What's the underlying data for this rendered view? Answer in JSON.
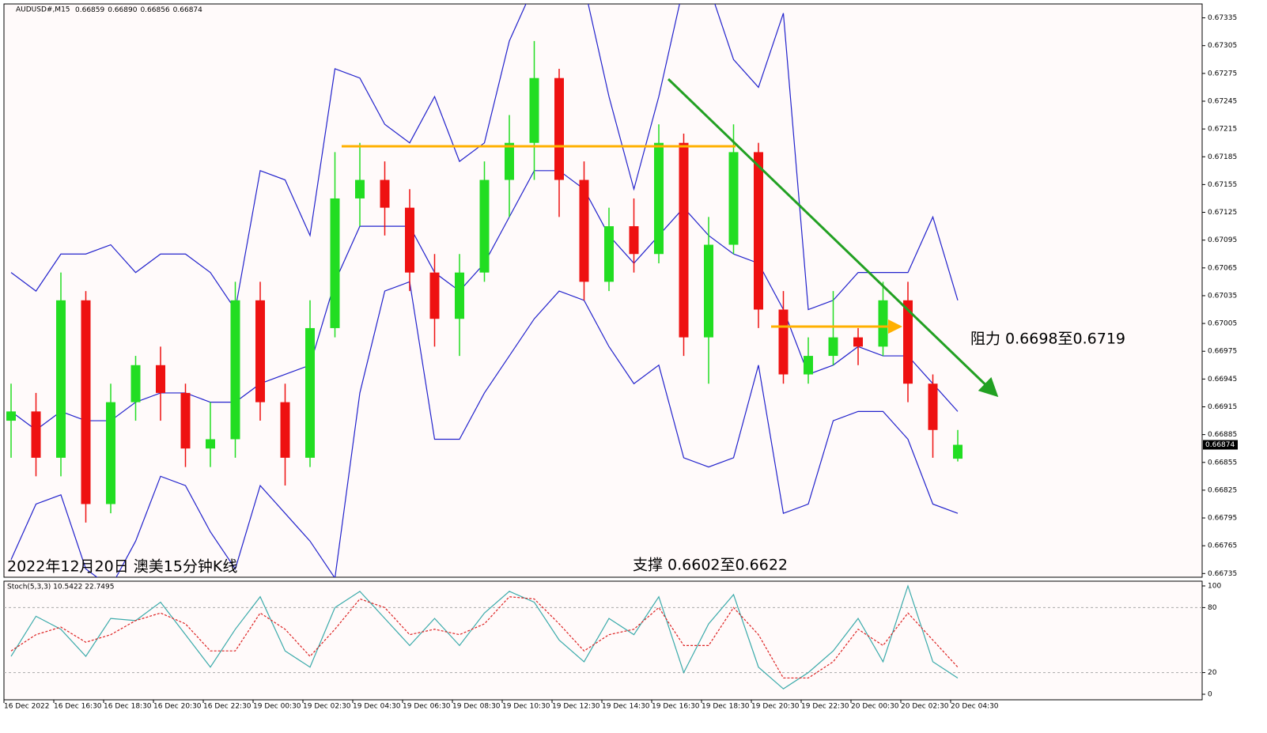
{
  "chart_data": [
    {
      "type": "candlestick",
      "symbol": "AUDUSD#,M15",
      "last_labels": [
        "0.66859",
        "0.66890",
        "0.66856",
        "0.66874"
      ],
      "caption": "2022年12月20日 澳美15分钟K线",
      "resistance": "阻力 0.6698至0.6719",
      "support": "支撑 0.6602至0.6622",
      "categories": [
        "16 Dec 2022",
        null,
        "16 Dec 16:30",
        null,
        "16 Dec 18:30",
        null,
        "16 Dec 20:30",
        null,
        "16 Dec 22:30",
        null,
        "19 Dec 00:30",
        null,
        "19 Dec 02:30",
        null,
        "19 Dec 04:30",
        null,
        "19 Dec 06:30",
        null,
        "19 Dec 08:30",
        null,
        "19 Dec 10:30",
        null,
        "19 Dec 12:30",
        null,
        "19 Dec 14:30",
        null,
        "19 Dec 16:30",
        null,
        "19 Dec 18:30",
        null,
        "19 Dec 20:30",
        null,
        "19 Dec 22:30",
        null,
        "20 Dec 00:30",
        null,
        "20 Dec 02:30",
        null,
        "20 Dec 04:30"
      ],
      "open": [
        0.669,
        0.6691,
        0.6686,
        0.6703,
        0.6681,
        0.6692,
        0.6696,
        0.6693,
        0.6687,
        0.6688,
        0.6703,
        0.6692,
        0.6686,
        0.67,
        0.6714,
        0.6716,
        0.6713,
        0.6706,
        0.6701,
        0.6706,
        0.6716,
        0.672,
        0.6727,
        0.6716,
        0.6705,
        0.6711,
        0.6708,
        0.672,
        0.6699,
        0.6709,
        0.6719,
        0.6702,
        0.6695,
        0.6697,
        0.6699,
        0.6698,
        0.6703,
        0.6694,
        0.66859
      ],
      "high": [
        0.6694,
        0.6693,
        0.6706,
        0.6704,
        0.6694,
        0.6697,
        0.6698,
        0.6694,
        0.6692,
        0.6705,
        0.6705,
        0.6694,
        0.6703,
        0.6719,
        0.672,
        0.6718,
        0.6715,
        0.6708,
        0.6708,
        0.6718,
        0.6723,
        0.6731,
        0.6728,
        0.6718,
        0.6713,
        0.6714,
        0.6722,
        0.6721,
        0.6712,
        0.6722,
        0.672,
        0.6704,
        0.6699,
        0.6704,
        0.67,
        0.6705,
        0.6705,
        0.6695,
        0.6689
      ],
      "low": [
        0.6686,
        0.6684,
        0.6684,
        0.6679,
        0.668,
        0.669,
        0.669,
        0.6685,
        0.6685,
        0.6686,
        0.669,
        0.6683,
        0.6685,
        0.6699,
        0.6711,
        0.671,
        0.6704,
        0.6698,
        0.6697,
        0.6705,
        0.6712,
        0.6716,
        0.6712,
        0.6703,
        0.6704,
        0.6706,
        0.6707,
        0.6697,
        0.6694,
        0.6708,
        0.67,
        0.6694,
        0.6694,
        0.6696,
        0.6696,
        0.6697,
        0.6692,
        0.6686,
        0.66856
      ],
      "close": [
        0.6691,
        0.6686,
        0.6703,
        0.6681,
        0.6692,
        0.6696,
        0.6693,
        0.6687,
        0.6688,
        0.6703,
        0.6692,
        0.6686,
        0.67,
        0.6714,
        0.6716,
        0.6713,
        0.6706,
        0.6701,
        0.6706,
        0.6716,
        0.672,
        0.6727,
        0.6716,
        0.6705,
        0.6711,
        0.6708,
        0.672,
        0.6699,
        0.6709,
        0.6719,
        0.6702,
        0.6695,
        0.6697,
        0.6699,
        0.6698,
        0.6703,
        0.6694,
        0.6689,
        0.66874
      ],
      "up_color": "#22dd22",
      "down_color": "#ee1111",
      "series": [
        {
          "color": "#2222cc",
          "values": [
            0.6706,
            0.6704,
            0.6708,
            0.6708,
            0.6709,
            0.6706,
            0.6708,
            0.6708,
            0.6706,
            0.6702,
            0.6717,
            0.6716,
            0.671,
            0.6728,
            0.6727,
            0.6722,
            0.672,
            0.6725,
            0.6718,
            0.672,
            0.6731,
            0.6737,
            0.6737,
            0.6737,
            0.6725,
            0.6715,
            0.6725,
            0.6737,
            0.6737,
            0.6729,
            0.6726,
            0.6734,
            0.6702,
            0.6703,
            0.6706,
            0.6706,
            0.6706,
            0.6712,
            0.6703
          ]
        },
        {
          "color": "#2222cc",
          "values": [
            0.6691,
            0.6689,
            0.6691,
            0.669,
            0.669,
            0.6692,
            0.6693,
            0.6693,
            0.6692,
            0.6692,
            0.6694,
            0.6695,
            0.6696,
            0.6705,
            0.6711,
            0.6711,
            0.6711,
            0.6706,
            0.6704,
            0.6707,
            0.6712,
            0.6717,
            0.6717,
            0.6715,
            0.671,
            0.6707,
            0.671,
            0.6713,
            0.671,
            0.6708,
            0.6707,
            0.6702,
            0.6695,
            0.6696,
            0.6698,
            0.6697,
            0.6697,
            0.6694,
            0.6691
          ]
        },
        {
          "color": "#2222cc",
          "values": [
            0.6675,
            0.6681,
            0.6682,
            0.6674,
            0.6672,
            0.6677,
            0.6684,
            0.6683,
            0.6678,
            0.6674,
            0.6683,
            0.668,
            0.6677,
            0.6673,
            0.6693,
            0.6704,
            0.6705,
            0.6688,
            0.6688,
            0.6693,
            0.6697,
            0.6701,
            0.6704,
            0.6703,
            0.6698,
            0.6694,
            0.6696,
            0.6686,
            0.6685,
            0.6686,
            0.6696,
            0.668,
            0.6681,
            0.669,
            0.6691,
            0.6691,
            0.6688,
            0.6681,
            0.668
          ]
        }
      ],
      "ylim": [
        0.66731,
        0.6735
      ],
      "yticks": [
        0.67335,
        0.67305,
        0.67275,
        0.67245,
        0.67215,
        0.67185,
        0.67155,
        0.67125,
        0.67095,
        0.67065,
        0.67035,
        0.67005,
        0.66975,
        0.66945,
        0.66915,
        0.66885,
        0.66855,
        0.66825,
        0.66795,
        0.66765,
        0.66735
      ]
    },
    {
      "type": "line",
      "title": "Stoch(5,3,3) 10.5422 22.7495",
      "series": [
        {
          "color": "#3aaaaa",
          "values": [
            35,
            72,
            60,
            35,
            70,
            68,
            85,
            55,
            25,
            60,
            90,
            40,
            25,
            80,
            95,
            70,
            45,
            70,
            45,
            75,
            95,
            85,
            50,
            30,
            70,
            55,
            90,
            20,
            65,
            92,
            25,
            5,
            20,
            40,
            70,
            30,
            100,
            30,
            15
          ]
        },
        {
          "color": "#dd2222",
          "dashed": true,
          "values": [
            40,
            55,
            62,
            48,
            55,
            68,
            75,
            65,
            40,
            40,
            75,
            60,
            35,
            60,
            88,
            80,
            55,
            60,
            55,
            65,
            90,
            88,
            65,
            40,
            55,
            60,
            80,
            45,
            45,
            80,
            55,
            15,
            15,
            30,
            60,
            45,
            75,
            50,
            25
          ]
        }
      ],
      "ylim": [
        0,
        100
      ],
      "yticks": [
        100,
        80,
        20,
        0
      ],
      "levels": [
        80,
        20
      ]
    }
  ]
}
